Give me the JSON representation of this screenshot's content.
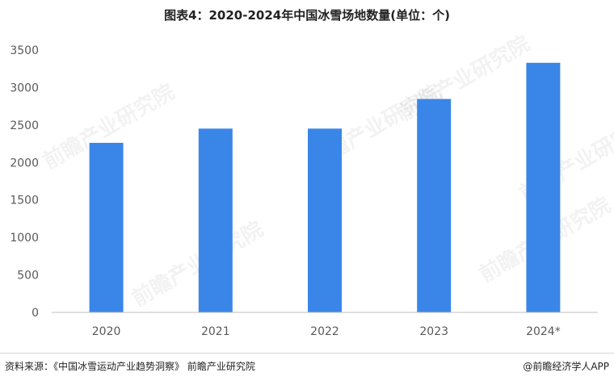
{
  "title": "图表4：2020-2024年中国冰雪场地数量(单位：个)",
  "footer": {
    "source": "资料来源：《中国冰雪运动产业趋势洞察》 前瞻产业研究院",
    "brand": "@前瞻经济学人APP"
  },
  "watermark": "前瞻产业研究院",
  "colors": {
    "bar": "#3a86e8",
    "axis": "#bfbfbf",
    "text": "#595959"
  },
  "chart_data": {
    "type": "bar",
    "categories": [
      "2020",
      "2021",
      "2022",
      "2023",
      "2024*"
    ],
    "values": [
      2262,
      2452,
      2452,
      2847,
      3330
    ],
    "ylim": [
      0,
      3500
    ],
    "yticks": [
      0,
      500,
      1000,
      1500,
      2000,
      2500,
      3000,
      3500
    ],
    "grid": false
  }
}
